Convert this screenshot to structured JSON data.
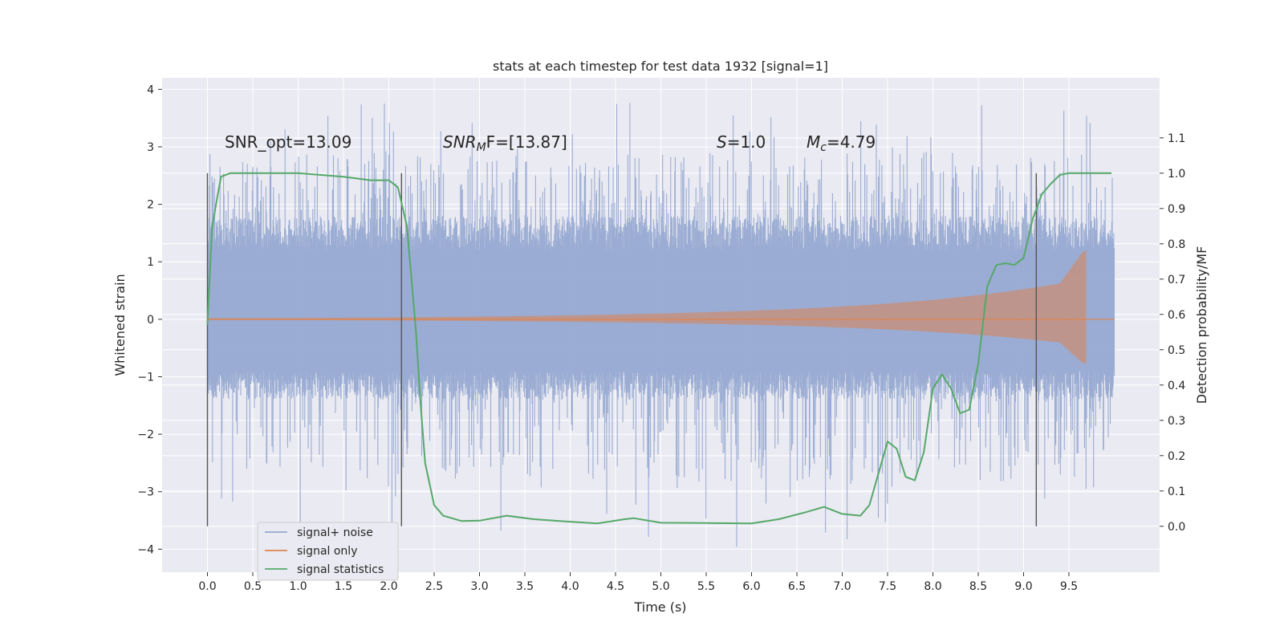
{
  "chart_data": {
    "type": "line",
    "title": "stats at each timestep for test data 1932 [signal=1]",
    "xlabel": "Time (s)",
    "ylabel": "Whitened strain",
    "y2label": "Detection probability/MF",
    "xlim": [
      -0.5,
      10.5
    ],
    "ylim": [
      -4.4,
      4.2
    ],
    "y2lim": [
      -0.13,
      1.27
    ],
    "x_ticks": [
      "0.0",
      "0.5",
      "1.0",
      "1.5",
      "2.0",
      "2.5",
      "3.0",
      "3.5",
      "4.0",
      "4.5",
      "5.0",
      "5.5",
      "6.0",
      "6.5",
      "7.0",
      "7.5",
      "8.0",
      "8.5",
      "9.0",
      "9.5"
    ],
    "y_ticks": [
      "4",
      "3",
      "2",
      "1",
      "0",
      "−1",
      "−2",
      "−3",
      "−4"
    ],
    "y2_ticks": [
      "1.1",
      "1.0",
      "0.9",
      "0.8",
      "0.7",
      "0.6",
      "0.5",
      "0.4",
      "0.3",
      "0.2",
      "0.1",
      "0.0"
    ],
    "grid": true,
    "legend_position": "bottom-left",
    "annotations": {
      "snr_opt": "SNR_opt=13.09",
      "snr_mf_base": "SNR",
      "snr_mf_sub": "M",
      "snr_mf_rest": "F=[13.87]",
      "s_var": "S",
      "s_rest": "=1.0",
      "mc_base": "M",
      "mc_sub": "c",
      "mc_rest": "=4.79"
    },
    "vertical_lines_x": [
      0.0,
      2.14,
      9.14
    ],
    "series": [
      {
        "name": "signal+ noise",
        "color": "#96a9d1",
        "kind": "noise",
        "x_range": [
          0.0,
          10.0
        ],
        "typical_range": [
          -1.4,
          1.8
        ],
        "extreme_range": [
          -4.0,
          3.8
        ]
      },
      {
        "name": "signal only",
        "color": "#dd8452",
        "kind": "chirp",
        "x_range": [
          0.0,
          9.7
        ],
        "amplitude_start": 0.02,
        "amplitude_peak": 1.2,
        "peak_x": 9.69
      },
      {
        "name": "signal statistics",
        "color": "#55a868",
        "kind": "curve",
        "x": [
          0.0,
          0.05,
          0.1,
          0.15,
          0.25,
          0.5,
          1.0,
          1.5,
          1.8,
          2.0,
          2.1,
          2.2,
          2.3,
          2.35,
          2.4,
          2.5,
          2.6,
          2.8,
          3.0,
          3.3,
          3.6,
          4.0,
          4.3,
          4.6,
          4.7,
          5.0,
          5.5,
          6.0,
          6.3,
          6.6,
          6.8,
          7.0,
          7.2,
          7.3,
          7.4,
          7.5,
          7.6,
          7.7,
          7.8,
          7.9,
          8.0,
          8.1,
          8.2,
          8.3,
          8.4,
          8.5,
          8.6,
          8.7,
          8.8,
          8.9,
          9.0,
          9.1,
          9.2,
          9.3,
          9.4,
          9.5,
          9.6,
          9.7,
          9.8,
          9.9,
          9.97
        ],
        "y": [
          0.57,
          0.84,
          0.92,
          0.99,
          1.0,
          1.0,
          1.0,
          0.99,
          0.98,
          0.98,
          0.96,
          0.85,
          0.55,
          0.35,
          0.18,
          0.06,
          0.03,
          0.015,
          0.016,
          0.03,
          0.02,
          0.013,
          0.008,
          0.02,
          0.023,
          0.01,
          0.009,
          0.008,
          0.02,
          0.04,
          0.055,
          0.035,
          0.03,
          0.06,
          0.15,
          0.24,
          0.22,
          0.14,
          0.13,
          0.21,
          0.39,
          0.43,
          0.39,
          0.32,
          0.33,
          0.46,
          0.68,
          0.74,
          0.745,
          0.74,
          0.76,
          0.87,
          0.94,
          0.97,
          0.995,
          1.0,
          1.0,
          1.0,
          1.0,
          1.0,
          1.0
        ]
      }
    ]
  }
}
